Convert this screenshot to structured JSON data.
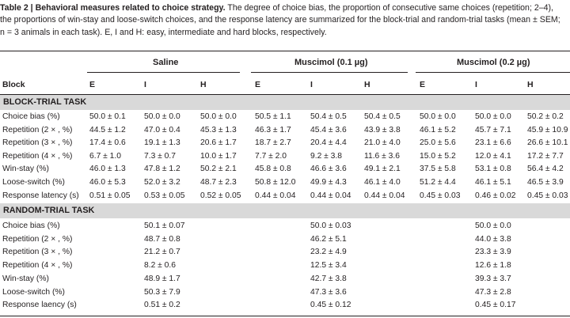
{
  "caption": {
    "lead": "Table 2 | Behavioral measures related to choice strategy.",
    "rest": " The degree of choice bias, the proportion of consecutive same choices (repetition; 2–4), the proportions of win-stay and loose-switch choices, and the response latency are summarized for the block-trial and random-trial tasks (mean ± SEM; n = 3 animals in each task). E, I and H: easy, intermediate and hard blocks, respectively."
  },
  "groups": [
    "Saline",
    "Muscimol (0.1 µg)",
    "Muscimol (0.2 µg)"
  ],
  "header": {
    "block_label": "Block",
    "columns": [
      "E",
      "I",
      "H",
      "E",
      "I",
      "H",
      "E",
      "I",
      "H"
    ]
  },
  "block_trial": {
    "title": "BLOCK-TRIAL TASK",
    "rows": [
      {
        "label": "Choice bias (%)",
        "values": [
          "50.0 ± 0.1",
          "50.0 ± 0.0",
          "50.0 ± 0.0",
          "50.5 ± 1.1",
          "50.4 ± 0.5",
          "50.4 ± 0.5",
          "50.0 ± 0.0",
          "50.0 ± 0.0",
          "50.2 ± 0.2"
        ]
      },
      {
        "label": "Repetition (2 × , %)",
        "values": [
          "44.5 ± 1.2",
          "47.0 ± 0.4",
          "45.3 ± 1.3",
          "46.3 ± 1.7",
          "45.4 ± 3.6",
          "43.9 ± 3.8",
          "46.1 ± 5.2",
          "45.7 ± 7.1",
          "45.9 ± 10.9"
        ]
      },
      {
        "label": "Repetition (3 × , %)",
        "values": [
          "17.4 ± 0.6",
          "19.1 ± 1.3",
          "20.6 ± 1.7",
          "18.7 ± 2.7",
          "20.4 ± 4.4",
          "21.0 ± 4.0",
          "25.0 ± 5.6",
          "23.1 ± 6.6",
          "26.6 ± 10.1"
        ]
      },
      {
        "label": "Repetition (4 × , %)",
        "values": [
          "6.7 ± 1.0",
          "7.3 ± 0.7",
          "10.0 ± 1.7",
          "7.7 ± 2.0",
          "9.2 ± 3.8",
          "11.6 ± 3.6",
          "15.0 ± 5.2",
          "12.0 ± 4.1",
          "17.2 ± 7.7"
        ]
      },
      {
        "label": "Win-stay (%)",
        "values": [
          "46.0 ± 1.3",
          "47.8 ± 1.2",
          "50.2 ± 2.1",
          "45.8 ± 0.8",
          "46.6 ± 3.6",
          "49.1 ± 2.1",
          "37.5 ± 5.8",
          "53.1 ± 0.8",
          "56.4 ± 4.2"
        ]
      },
      {
        "label": "Loose-switch (%)",
        "values": [
          "46.0 ± 5.3",
          "52.0 ± 3.2",
          "48.7 ± 2.3",
          "50.8 ± 12.0",
          "49.9 ± 4.3",
          "46.1 ± 4.0",
          "51.2 ± 4.4",
          "46.1 ± 5.1",
          "46.5 ± 3.9"
        ]
      },
      {
        "label": "Response latency (s)",
        "values": [
          "0.51 ± 0.05",
          "0.53 ± 0.05",
          "0.52 ± 0.05",
          "0.44 ± 0.04",
          "0.44 ± 0.04",
          "0.44 ± 0.04",
          "0.45 ± 0.03",
          "0.46 ± 0.02",
          "0.45 ± 0.03"
        ]
      }
    ]
  },
  "random_trial": {
    "title": "RANDOM-TRIAL TASK",
    "rows": [
      {
        "label": "Choice bias (%)",
        "values": [
          "50.1 ± 0.07",
          "50.0 ± 0.03",
          "50.0 ± 0.0"
        ]
      },
      {
        "label": "Repetition (2 × , %)",
        "values": [
          "48.7 ± 0.8",
          "46.2 ± 5.1",
          "44.0 ± 3.8"
        ]
      },
      {
        "label": "Repetition (3 × , %)",
        "values": [
          "21.2 ± 0.7",
          "23.2 ± 4.9",
          "23.3 ± 3.9"
        ]
      },
      {
        "label": "Repetition (4 × , %)",
        "values": [
          "8.2 ± 0.6",
          "12.5 ± 3.4",
          "12.6 ± 1.8"
        ]
      },
      {
        "label": "Win-stay (%)",
        "values": [
          "48.9 ± 1.7",
          "42.7 ± 3.8",
          "39.3 ± 3.7"
        ]
      },
      {
        "label": "Loose-switch (%)",
        "values": [
          "50.3 ± 7.9",
          "47.3 ± 3.6",
          "47.3 ± 2.8"
        ]
      },
      {
        "label": "Response laency (s)",
        "values": [
          "0.51 ± 0.2",
          "0.45 ± 0.12",
          "0.45 ± 0.17"
        ]
      }
    ]
  }
}
